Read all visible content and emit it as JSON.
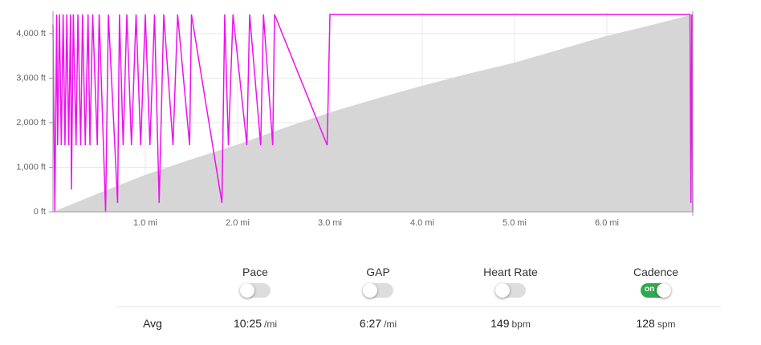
{
  "chart_data": {
    "type": "area-line",
    "ylim": [
      0,
      4500
    ],
    "yticks": [
      {
        "value": 0,
        "label": "0 ft"
      },
      {
        "value": 1000,
        "label": "1,000 ft"
      },
      {
        "value": 2000,
        "label": "2,000 ft"
      },
      {
        "value": 3000,
        "label": "3,000 ft"
      },
      {
        "value": 4000,
        "label": "4,000 ft"
      }
    ],
    "xlim": [
      0,
      6.93
    ],
    "xticks": [
      {
        "value": 1,
        "label": "1.0 mi"
      },
      {
        "value": 2,
        "label": "2.0 mi"
      },
      {
        "value": 3,
        "label": "3.0 mi"
      },
      {
        "value": 4,
        "label": "4.0 mi"
      },
      {
        "value": 5,
        "label": "5.0 mi"
      },
      {
        "value": 6,
        "label": "6.0 mi"
      }
    ],
    "grid": true,
    "series": [
      {
        "kind": "area",
        "color": "#d6d6d6",
        "x": [
          0,
          0.5,
          1,
          1.5,
          2,
          2.5,
          3,
          3.5,
          4,
          4.5,
          5,
          5.5,
          6,
          6.5,
          6.93,
          6.93
        ],
        "values": [
          0,
          420,
          830,
          1180,
          1510,
          1880,
          2230,
          2540,
          2830,
          3100,
          3350,
          3650,
          3950,
          4200,
          4430,
          0
        ]
      },
      {
        "kind": "line",
        "color": "#ee11ee",
        "x": [
          0,
          0.02,
          0.04,
          0.05,
          0.07,
          0.09,
          0.11,
          0.13,
          0.15,
          0.17,
          0.19,
          0.2,
          0.22,
          0.25,
          0.27,
          0.3,
          0.32,
          0.35,
          0.38,
          0.4,
          0.43,
          0.48,
          0.5,
          0.57,
          0.6,
          0.7,
          0.72,
          0.76,
          0.8,
          0.85,
          0.9,
          0.95,
          1.0,
          1.05,
          1.1,
          1.15,
          1.2,
          1.3,
          1.35,
          1.48,
          1.5,
          1.83,
          1.86,
          1.9,
          1.95,
          2.1,
          2.13,
          2.25,
          2.28,
          2.38,
          2.4,
          2.97,
          3.0,
          6.9,
          6.91,
          6.92,
          6.93
        ],
        "values": [
          4200,
          0,
          4430,
          1495,
          4430,
          1495,
          4430,
          1495,
          4430,
          1495,
          4430,
          500,
          4430,
          1495,
          4430,
          1495,
          4430,
          1495,
          4430,
          1495,
          4430,
          1495,
          4430,
          0,
          4430,
          200,
          4430,
          1495,
          4430,
          1495,
          4430,
          1495,
          4430,
          1495,
          4430,
          200,
          4430,
          1495,
          4430,
          1495,
          4430,
          200,
          4430,
          1495,
          4430,
          1495,
          4430,
          1495,
          4430,
          1495,
          4430,
          1495,
          4430,
          4430,
          200,
          4430,
          0
        ]
      }
    ]
  },
  "stats": {
    "row_label": "Avg",
    "on_label": "on",
    "items": [
      {
        "name": "Pace",
        "value": "10:25",
        "unit": "/mi",
        "on": false
      },
      {
        "name": "GAP",
        "value": "6:27",
        "unit": "/mi",
        "on": false
      },
      {
        "name": "Heart Rate",
        "value": "149",
        "unit": "bpm",
        "on": false
      },
      {
        "name": "Cadence",
        "value": "128",
        "unit": "spm",
        "on": true
      }
    ]
  }
}
